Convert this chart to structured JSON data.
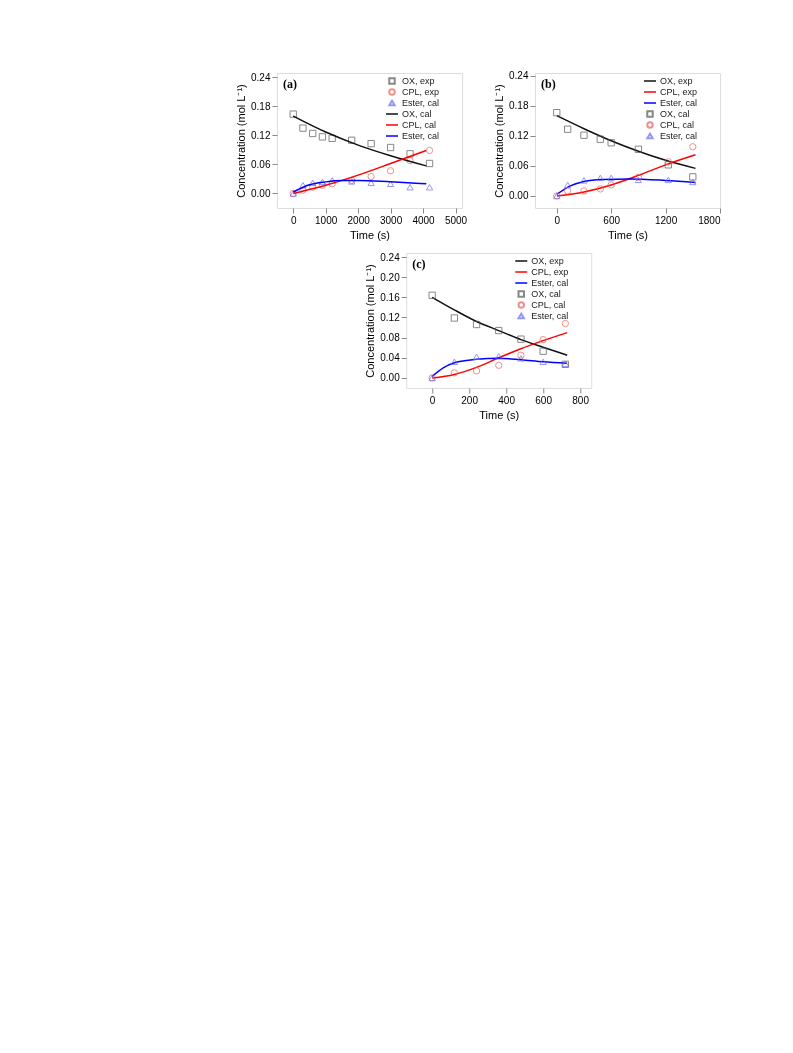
{
  "chart_data": [
    {
      "type": "line",
      "annotations": [
        "(a)"
      ],
      "xlabel": "Time (s)",
      "ylabel": "Concentration (mol L⁻¹)",
      "xlim": [
        -500,
        5200
      ],
      "xticks": [
        0,
        1000,
        2000,
        3000,
        4000,
        5000
      ],
      "ylim": [
        -0.03,
        0.249
      ],
      "yticks": [
        {
          "value": 0,
          "label": "0.00"
        },
        {
          "value": 0.06,
          "label": "0.06"
        },
        {
          "value": 0.12,
          "label": "0.12"
        },
        {
          "value": 0.18,
          "label": "0.18"
        },
        {
          "value": 0.24,
          "label": "0.24"
        }
      ],
      "grid": false,
      "legend": "top right",
      "series": [
        {
          "name": "OX, exp",
          "type": "scatter",
          "marker": "square",
          "color": "#555555",
          "x": [
            0,
            300,
            600,
            900,
            1200,
            1800,
            2400,
            3000,
            3600,
            4200
          ],
          "values": [
            0.164,
            0.135,
            0.124,
            0.117,
            0.114,
            0.11,
            0.103,
            0.095,
            0.082,
            0.062
          ]
        },
        {
          "name": "CPL, exp",
          "type": "scatter",
          "marker": "circle",
          "color": "#e8605a",
          "x": [
            0,
            300,
            600,
            900,
            1200,
            1800,
            2400,
            3000,
            3600,
            4200
          ],
          "values": [
            0.0,
            0.007,
            0.013,
            0.017,
            0.02,
            0.027,
            0.035,
            0.047,
            0.068,
            0.089
          ]
        },
        {
          "name": "Ester, cal",
          "type": "scatter",
          "marker": "triangle",
          "color": "#6a6af0",
          "x": [
            0,
            300,
            600,
            900,
            1200,
            1800,
            2400,
            3000,
            3600,
            4200
          ],
          "values": [
            0.0,
            0.017,
            0.022,
            0.024,
            0.027,
            0.025,
            0.022,
            0.02,
            0.013,
            0.013
          ]
        },
        {
          "name": "OX, cal",
          "color": "#111111",
          "x": [
            0,
            1000,
            2000,
            3000,
            4100
          ],
          "values": [
            0.16,
            0.127,
            0.1,
            0.078,
            0.057
          ]
        },
        {
          "name": "CPL, cal",
          "color": "#ff0000",
          "x": [
            0,
            1000,
            2000,
            3000,
            4100
          ],
          "values": [
            0.0,
            0.017,
            0.038,
            0.062,
            0.089
          ]
        },
        {
          "name": "Ester, cal",
          "color": "#0000ff",
          "x": [
            0,
            500,
            1000,
            1500,
            2000,
            3000,
            4100
          ],
          "values": [
            0.003,
            0.018,
            0.024,
            0.027,
            0.027,
            0.024,
            0.02
          ]
        }
      ]
    },
    {
      "type": "line",
      "annotations": [
        "(b)"
      ],
      "xlabel": "Time (s)",
      "ylabel": "Concentration (mol L⁻¹)",
      "xlim": [
        -240,
        1800
      ],
      "xticks": [
        0,
        600,
        1200,
        1800
      ],
      "ylim": [
        -0.024,
        0.245
      ],
      "yticks": [
        {
          "value": 0,
          "label": "0.00"
        },
        {
          "value": 0.06,
          "label": "0.06"
        },
        {
          "value": 0.12,
          "label": "0.12"
        },
        {
          "value": 0.18,
          "label": "0.18"
        },
        {
          "value": 0.24,
          "label": "0.24"
        }
      ],
      "grid": false,
      "legend": "top right",
      "series": [
        {
          "name": "OX, exp",
          "color": "#111111",
          "x": [
            0,
            300,
            600,
            900,
            1200,
            1530
          ],
          "values": [
            0.16,
            0.134,
            0.11,
            0.089,
            0.071,
            0.055
          ]
        },
        {
          "name": "CPL, exp",
          "color": "#ff0000",
          "x": [
            0,
            300,
            600,
            900,
            1200,
            1530
          ],
          "values": [
            0.0,
            0.008,
            0.022,
            0.041,
            0.062,
            0.082
          ]
        },
        {
          "name": "Ester, cal",
          "color": "#0000ff",
          "x": [
            0,
            150,
            300,
            500,
            800,
            1200,
            1530
          ],
          "values": [
            0.003,
            0.02,
            0.029,
            0.033,
            0.034,
            0.031,
            0.027
          ]
        },
        {
          "name": "OX, cal",
          "type": "scatter",
          "marker": "square",
          "color": "#555555",
          "x": [
            0,
            120,
            300,
            480,
            600,
            900,
            1230,
            1500
          ],
          "values": [
            0.166,
            0.133,
            0.121,
            0.113,
            0.106,
            0.093,
            0.062,
            0.038
          ]
        },
        {
          "name": "CPL, cal",
          "type": "scatter",
          "marker": "circle",
          "color": "#e8605a",
          "x": [
            0,
            120,
            300,
            480,
            600,
            900,
            1230,
            1500
          ],
          "values": [
            0.0,
            0.01,
            0.01,
            0.014,
            0.022,
            0.037,
            0.068,
            0.098
          ]
        },
        {
          "name": "Ester, cal",
          "type": "scatter",
          "marker": "triangle",
          "color": "#6a6af0",
          "x": [
            0,
            120,
            300,
            480,
            600,
            900,
            1230,
            1500
          ],
          "values": [
            0.0,
            0.022,
            0.031,
            0.036,
            0.036,
            0.032,
            0.032,
            0.028
          ]
        }
      ]
    },
    {
      "type": "line",
      "annotations": [
        "(c)"
      ],
      "xlabel": "Time (s)",
      "ylabel": "Concentration (mol L⁻¹)",
      "xlim": [
        -140,
        860
      ],
      "xticks": [
        0,
        200,
        400,
        600,
        800
      ],
      "ylim": [
        -0.02,
        0.248
      ],
      "yticks": [
        {
          "value": 0,
          "label": "0.00"
        },
        {
          "value": 0.04,
          "label": "0.04"
        },
        {
          "value": 0.08,
          "label": "0.08"
        },
        {
          "value": 0.12,
          "label": "0.12"
        },
        {
          "value": 0.16,
          "label": "0.16"
        },
        {
          "value": 0.2,
          "label": "0.20"
        },
        {
          "value": 0.24,
          "label": "0.24"
        }
      ],
      "grid": false,
      "legend": "top right",
      "series": [
        {
          "name": "OX, exp",
          "color": "#111111",
          "x": [
            0,
            120,
            240,
            360,
            480,
            600,
            730
          ],
          "values": [
            0.16,
            0.135,
            0.112,
            0.094,
            0.076,
            0.061,
            0.045
          ]
        },
        {
          "name": "CPL, exp",
          "color": "#ff0000",
          "x": [
            0,
            120,
            240,
            360,
            480,
            600,
            730
          ],
          "values": [
            0.0,
            0.007,
            0.021,
            0.04,
            0.058,
            0.074,
            0.09
          ]
        },
        {
          "name": "Ester, cal",
          "color": "#0000ff",
          "x": [
            0,
            60,
            120,
            240,
            360,
            480,
            600,
            730
          ],
          "values": [
            0.003,
            0.02,
            0.03,
            0.037,
            0.039,
            0.036,
            0.032,
            0.029
          ]
        },
        {
          "name": "OX, cal",
          "type": "scatter",
          "marker": "square",
          "color": "#555555",
          "x": [
            0,
            120,
            240,
            360,
            480,
            600,
            720
          ],
          "values": [
            0.164,
            0.119,
            0.106,
            0.094,
            0.077,
            0.053,
            0.027
          ]
        },
        {
          "name": "CPL, cal",
          "type": "scatter",
          "marker": "circle",
          "color": "#e8605a",
          "x": [
            0,
            120,
            240,
            360,
            480,
            600,
            720
          ],
          "values": [
            0.0,
            0.01,
            0.014,
            0.025,
            0.045,
            0.076,
            0.108
          ]
        },
        {
          "name": "Ester, cal",
          "type": "scatter",
          "marker": "triangle",
          "color": "#6a6af0",
          "x": [
            0,
            120,
            240,
            360,
            480,
            600,
            720
          ],
          "values": [
            0.0,
            0.032,
            0.042,
            0.043,
            0.039,
            0.032,
            0.028
          ]
        }
      ]
    }
  ]
}
